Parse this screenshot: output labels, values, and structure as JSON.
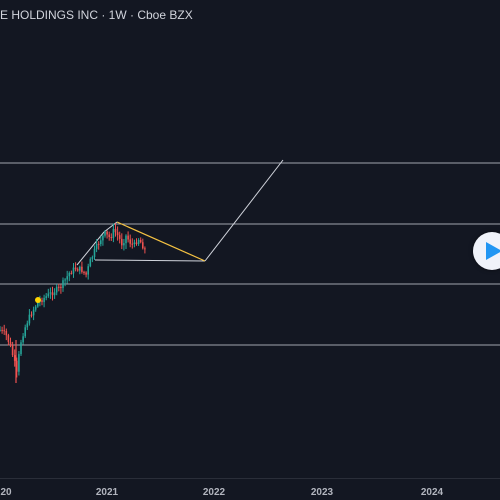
{
  "header": {
    "title": "E HOLDINGS INC · 1W · Cboe BZX"
  },
  "time_axis": {
    "labels": [
      "20",
      "2021",
      "2022",
      "2023",
      "2024"
    ]
  },
  "replay_button": {
    "icon": "play-icon"
  },
  "colors": {
    "background": "#131722",
    "up": "#26a69a",
    "down": "#ef5350",
    "drawing": "#d1d4dc",
    "trend": "#f5c242",
    "marker": "#ffd400",
    "accent": "#2196f3"
  }
}
